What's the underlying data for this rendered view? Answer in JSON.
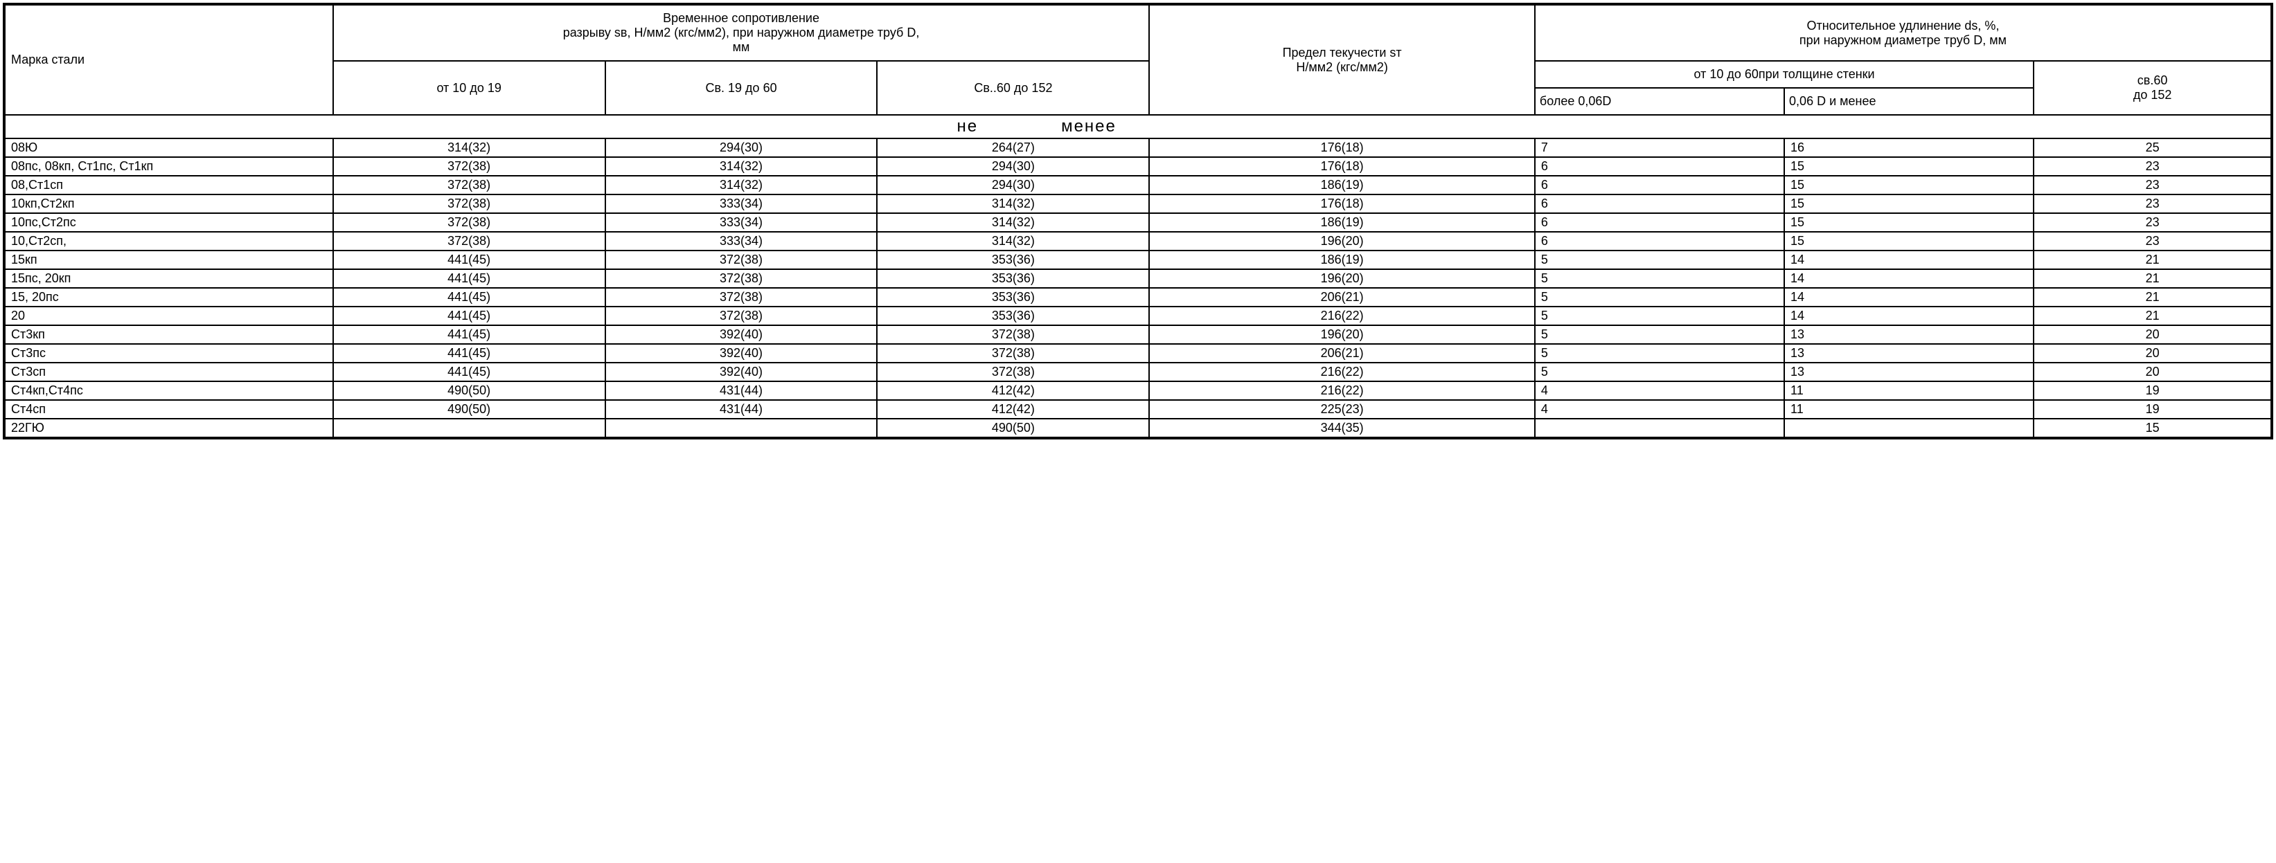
{
  "table": {
    "type": "table",
    "background_color": "#ffffff",
    "border_color": "#000000",
    "font_family": "Arial",
    "header_fontsize": 18,
    "cell_fontsize": 18,
    "spanner_fontsize": 24,
    "headers": {
      "col_marka": "Марка стали",
      "group_tensile": "Временное сопротивление\nразрыву sв, Н/мм2 (кгс/мм2), при наружном диаметре труб D,\nмм",
      "tensile_sub1": "от 10 до 19",
      "tensile_sub2": "Св. 19 до 60",
      "tensile_sub3": "Св..60 до 152",
      "col_yield": "Предел текучести sт\nН/мм2 (кгс/мм2)",
      "group_elongation": "Относительное удлинение ds, %,\nпри наружном диаметре труб D, мм",
      "elong_wall": "от 10 до 60при толщине стенки",
      "elong_wall_sub1": "более 0,06D",
      "elong_wall_sub2": "0,06 D и менее",
      "elong_sv60": "св.60\nдо 152",
      "spanner_left": "не",
      "spanner_right": "менее"
    },
    "rows": [
      {
        "label": "08Ю",
        "t1": "314(32)",
        "t2": "294(30)",
        "t3": "264(27)",
        "yield": "176(18)",
        "e1": "7",
        "e2": "16",
        "e3": "25"
      },
      {
        "label": "08пс, 08кп, Ст1пс, Ст1кп",
        "t1": "372(38)",
        "t2": "314(32)",
        "t3": "294(30)",
        "yield": "176(18)",
        "e1": "6",
        "e2": "15",
        "e3": "23"
      },
      {
        "label": "08,Ст1сп",
        "t1": "372(38)",
        "t2": "314(32)",
        "t3": "294(30)",
        "yield": "186(19)",
        "e1": "6",
        "e2": "15",
        "e3": "23"
      },
      {
        "label": "10кп,Ст2кп",
        "t1": "372(38)",
        "t2": "333(34)",
        "t3": "314(32)",
        "yield": "176(18)",
        "e1": "6",
        "e2": "15",
        "e3": "23"
      },
      {
        "label": "10пс,Ст2пс",
        "t1": "372(38)",
        "t2": "333(34)",
        "t3": "314(32)",
        "yield": "186(19)",
        "e1": "6",
        "e2": "15",
        "e3": "23"
      },
      {
        "label": "10,Ст2сп,",
        "t1": "372(38)",
        "t2": "333(34)",
        "t3": "314(32)",
        "yield": "196(20)",
        "e1": "6",
        "e2": "15",
        "e3": "23"
      },
      {
        "label": "15кп",
        "t1": "441(45)",
        "t2": "372(38)",
        "t3": "353(36)",
        "yield": "186(19)",
        "e1": "5",
        "e2": "14",
        "e3": "21"
      },
      {
        "label": "15пс, 20кп",
        "t1": "441(45)",
        "t2": "372(38)",
        "t3": "353(36)",
        "yield": "196(20)",
        "e1": "5",
        "e2": "14",
        "e3": "21"
      },
      {
        "label": "15, 20пс",
        "t1": "441(45)",
        "t2": "372(38)",
        "t3": "353(36)",
        "yield": "206(21)",
        "e1": "5",
        "e2": "14",
        "e3": "21"
      },
      {
        "label": "20",
        "t1": "441(45)",
        "t2": "372(38)",
        "t3": "353(36)",
        "yield": "216(22)",
        "e1": "5",
        "e2": "14",
        "e3": "21"
      },
      {
        "label": "Ст3кп",
        "t1": "441(45)",
        "t2": "392(40)",
        "t3": "372(38)",
        "yield": "196(20)",
        "e1": "5",
        "e2": "13",
        "e3": "20"
      },
      {
        "label": "Ст3пс",
        "t1": "441(45)",
        "t2": "392(40)",
        "t3": "372(38)",
        "yield": "206(21)",
        "e1": "5",
        "e2": "13",
        "e3": "20"
      },
      {
        "label": "Ст3сп",
        "t1": "441(45)",
        "t2": "392(40)",
        "t3": "372(38)",
        "yield": "216(22)",
        "e1": "5",
        "e2": "13",
        "e3": "20"
      },
      {
        "label": "Ст4кп,Ст4пс",
        "t1": "490(50)",
        "t2": "431(44)",
        "t3": "412(42)",
        "yield": "216(22)",
        "e1": "4",
        "e2": "11",
        "e3": "19"
      },
      {
        "label": "Ст4сп",
        "t1": "490(50)",
        "t2": "431(44)",
        "t3": "412(42)",
        "yield": "225(23)",
        "e1": "4",
        "e2": "11",
        "e3": "19"
      },
      {
        "label": "22ГЮ",
        "t1": "",
        "t2": "",
        "t3": "490(50)",
        "yield": "344(35)",
        "e1": "",
        "e2": "",
        "e3": "15"
      }
    ],
    "column_widths_pct": [
      14.5,
      12,
      12,
      12,
      17,
      11,
      11,
      10.5
    ],
    "column_align": [
      "left",
      "center",
      "center",
      "center",
      "center",
      "left",
      "left",
      "center"
    ]
  }
}
